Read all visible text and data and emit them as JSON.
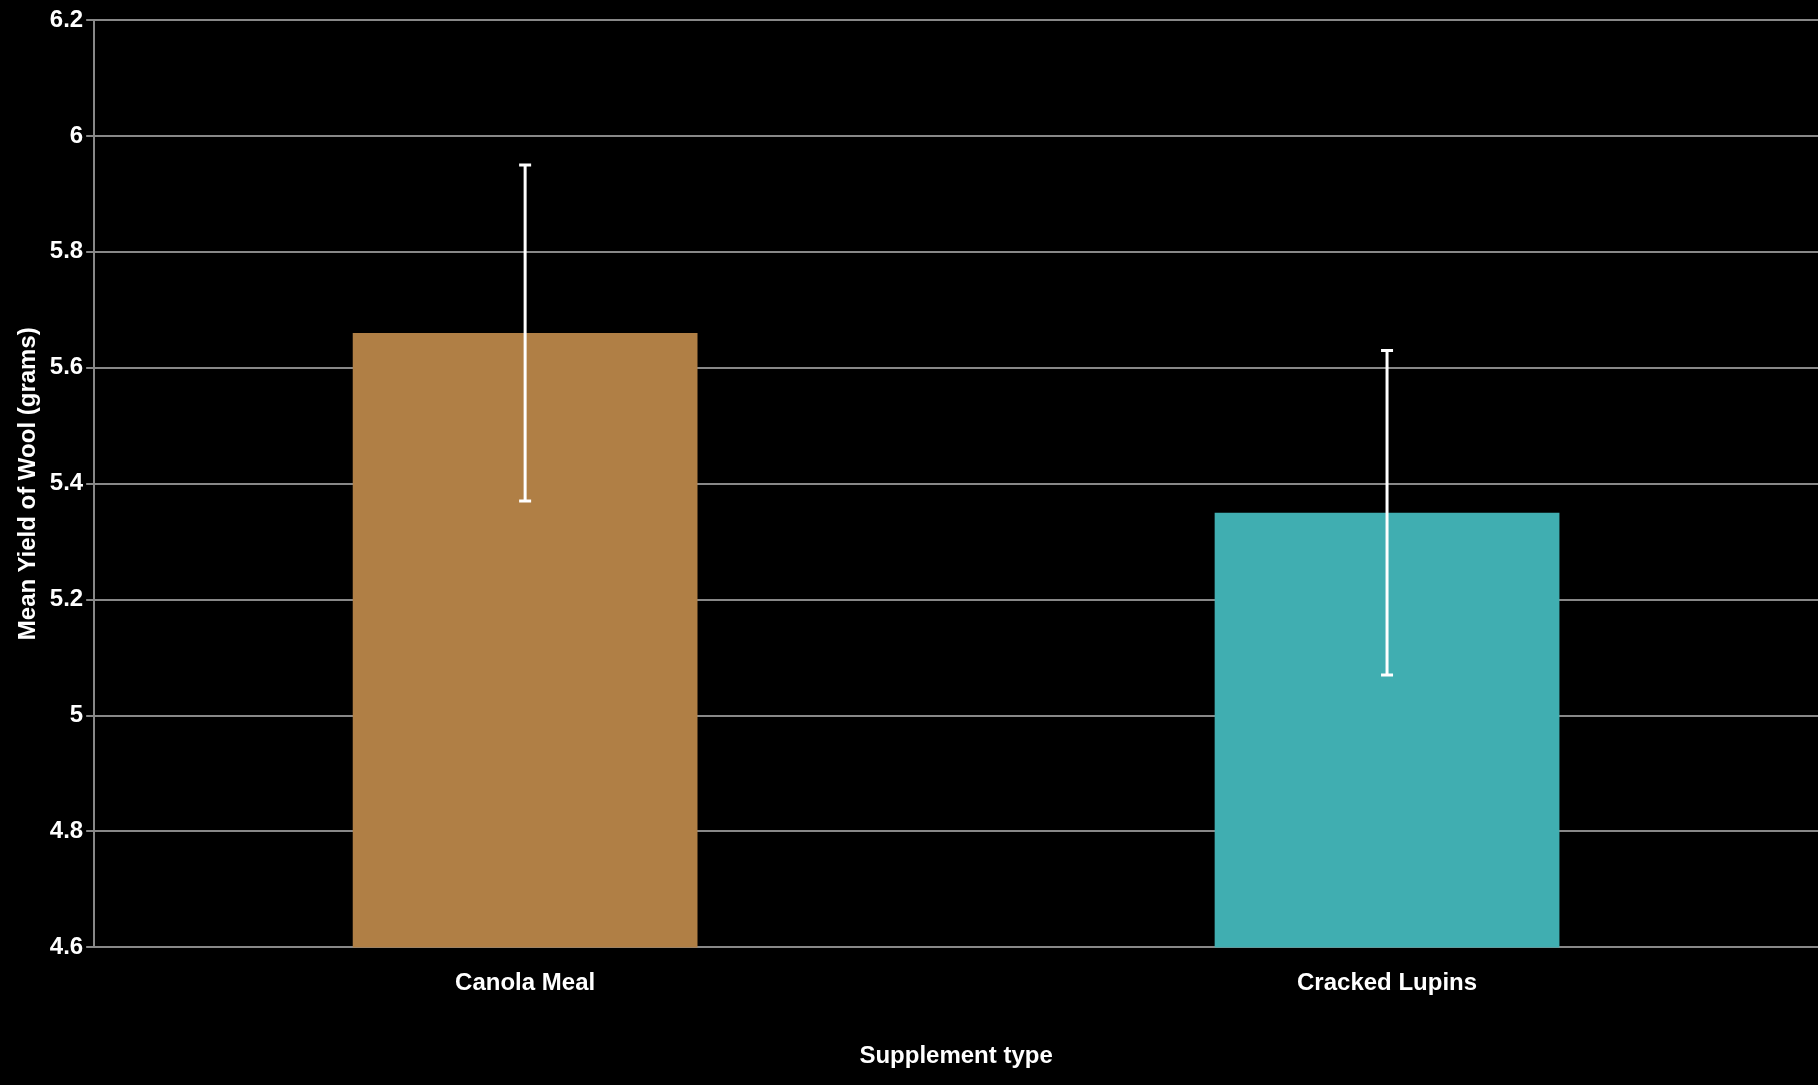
{
  "chart_data": {
    "type": "bar",
    "xlabel": "Supplement type",
    "ylabel": "Mean Yield of Wool (grams)",
    "categories": [
      "Canola Meal",
      "Cracked Lupins"
    ],
    "values": [
      5.66,
      5.35
    ],
    "colors": [
      "#b07f45",
      "#40aeb1"
    ],
    "errors": [
      0.29,
      0.28
    ],
    "ylim": [
      4.6,
      6.2
    ],
    "yticks": [
      4.6,
      4.8,
      5,
      5.2,
      5.4,
      5.6,
      5.8,
      6,
      6.2
    ],
    "grid": "y",
    "legend": false
  }
}
